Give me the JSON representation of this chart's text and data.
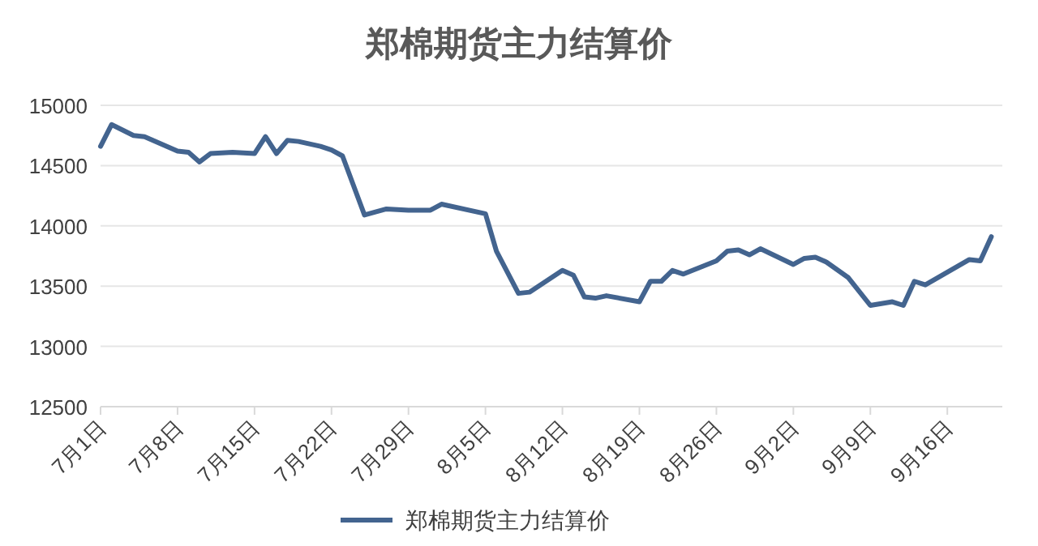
{
  "chart_data": {
    "type": "line",
    "title": "郑棉期货主力结算价",
    "x": [
      "--07-01",
      "--07-02",
      "--07-04",
      "--07-05",
      "--07-08",
      "--07-09",
      "--07-10",
      "--07-11",
      "--07-13",
      "--07-15",
      "--07-16",
      "--07-17",
      "--07-18",
      "--07-19",
      "--07-21",
      "--07-22",
      "--07-23",
      "--07-25",
      "--07-27",
      "--07-29",
      "--07-31",
      "--08-01",
      "--08-05",
      "--08-06",
      "--08-08",
      "--08-09",
      "--08-12",
      "--08-13",
      "--08-14",
      "--08-15",
      "--08-16",
      "--08-19",
      "--08-20",
      "--08-21",
      "--08-22",
      "--08-23",
      "--08-26",
      "--08-27",
      "--08-28",
      "--08-29",
      "--08-30",
      "--09-02",
      "--09-03",
      "--09-04",
      "--09-05",
      "--09-07",
      "--09-09",
      "--09-11",
      "--09-12",
      "--09-13",
      "--09-14",
      "--09-18",
      "--09-19",
      "--09-20"
    ],
    "series": [
      {
        "name": "郑棉期货主力结算价",
        "color": "#43648f",
        "values": [
          14660,
          14840,
          14750,
          14740,
          14620,
          14610,
          14530,
          14600,
          14610,
          14600,
          14740,
          14600,
          14710,
          14700,
          14660,
          14630,
          14580,
          14090,
          14140,
          14130,
          14130,
          14180,
          14100,
          13790,
          13440,
          13450,
          13630,
          13590,
          13410,
          13400,
          13420,
          13370,
          13540,
          13540,
          13630,
          13600,
          13710,
          13790,
          13800,
          13760,
          13810,
          13680,
          13730,
          13740,
          13700,
          13570,
          13340,
          13370,
          13340,
          13540,
          13510,
          13720,
          13710,
          13910
        ]
      }
    ],
    "xlim": [
      "--07-01",
      "--09-21"
    ],
    "xticks": [
      {
        "value": "--07-01",
        "label": "7月1日"
      },
      {
        "value": "--07-08",
        "label": "7月8日"
      },
      {
        "value": "--07-15",
        "label": "7月15日"
      },
      {
        "value": "--07-22",
        "label": "7月22日"
      },
      {
        "value": "--07-29",
        "label": "7月29日"
      },
      {
        "value": "--08-05",
        "label": "8月5日"
      },
      {
        "value": "--08-12",
        "label": "8月12日"
      },
      {
        "value": "--08-19",
        "label": "8月19日"
      },
      {
        "value": "--08-26",
        "label": "8月26日"
      },
      {
        "value": "--09-02",
        "label": "9月2日"
      },
      {
        "value": "--09-09",
        "label": "9月9日"
      },
      {
        "value": "--09-16",
        "label": "9月16日"
      }
    ],
    "ylim": [
      12500,
      15000
    ],
    "yticks": [
      12500,
      13000,
      13500,
      14000,
      14500,
      15000
    ],
    "grid": "y",
    "legend": "bottom"
  }
}
